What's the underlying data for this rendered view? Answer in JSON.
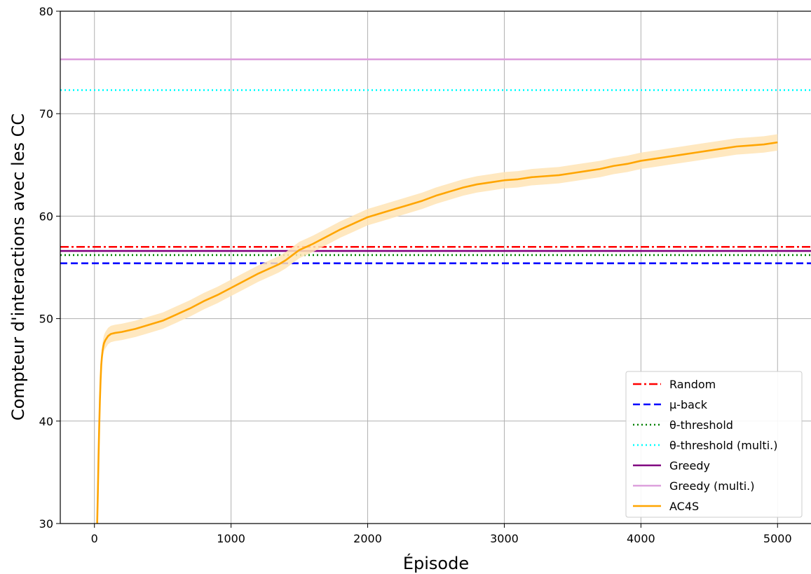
{
  "chart_data": {
    "type": "line",
    "title": "",
    "xlabel": "Épisode",
    "ylabel": "Compteur d'interactions avec les CC",
    "xlim": [
      -250,
      5250
    ],
    "ylim": [
      30,
      80
    ],
    "xticks": [
      0,
      1000,
      2000,
      3000,
      4000,
      5000
    ],
    "yticks": [
      30,
      40,
      50,
      60,
      70,
      80
    ],
    "grid": true,
    "legend_position": "bottom-right",
    "series": [
      {
        "name": "Random",
        "kind": "hline",
        "y": 57.0,
        "color": "#ff0000",
        "dash": "12,4,3,4",
        "width": 2.6
      },
      {
        "name": "μ-back",
        "kind": "hline",
        "y": 55.4,
        "color": "#0000ff",
        "dash": "10,5",
        "width": 2.6
      },
      {
        "name": "θ-threshold",
        "kind": "hline",
        "y": 56.2,
        "color": "#008000",
        "dash": "2,4",
        "width": 2.6
      },
      {
        "name": "θ-threshold (multi.)",
        "kind": "hline",
        "y": 72.3,
        "color": "#00ffff",
        "dash": "2,4",
        "width": 2.6
      },
      {
        "name": "Greedy",
        "kind": "hline",
        "y": 56.6,
        "color": "#800080",
        "dash": "",
        "width": 2.6
      },
      {
        "name": "Greedy (multi.)",
        "kind": "hline",
        "y": 75.3,
        "color": "#dda0dd",
        "dash": "",
        "width": 2.6
      },
      {
        "name": "AC4S",
        "kind": "curve",
        "color": "#ffa500",
        "band_color": "#ffe4b5",
        "band_halfwidth": 0.8,
        "x": [
          20,
          25,
          30,
          35,
          40,
          45,
          50,
          55,
          60,
          65,
          70,
          80,
          90,
          100,
          120,
          150,
          200,
          300,
          400,
          500,
          600,
          700,
          800,
          900,
          1000,
          1100,
          1200,
          1300,
          1350,
          1400,
          1450,
          1500,
          1550,
          1600,
          1700,
          1800,
          1900,
          2000,
          2100,
          2200,
          2300,
          2400,
          2500,
          2600,
          2700,
          2800,
          2900,
          3000,
          3100,
          3200,
          3300,
          3400,
          3500,
          3600,
          3700,
          3800,
          3900,
          4000,
          4100,
          4200,
          4300,
          4400,
          4500,
          4600,
          4700,
          4800,
          4900,
          5000
        ],
        "y": [
          30.0,
          33.0,
          36.5,
          39.5,
          42.0,
          44.0,
          45.5,
          46.3,
          46.9,
          47.3,
          47.6,
          47.9,
          48.1,
          48.3,
          48.5,
          48.6,
          48.7,
          49.0,
          49.4,
          49.8,
          50.4,
          51.0,
          51.7,
          52.3,
          53.0,
          53.7,
          54.4,
          55.0,
          55.3,
          55.7,
          56.2,
          56.7,
          57.0,
          57.3,
          58.0,
          58.7,
          59.3,
          59.9,
          60.3,
          60.7,
          61.1,
          61.5,
          62.0,
          62.4,
          62.8,
          63.1,
          63.3,
          63.5,
          63.6,
          63.8,
          63.9,
          64.0,
          64.2,
          64.4,
          64.6,
          64.9,
          65.1,
          65.4,
          65.6,
          65.8,
          66.0,
          66.2,
          66.4,
          66.6,
          66.8,
          66.9,
          67.0,
          67.2
        ]
      }
    ]
  }
}
